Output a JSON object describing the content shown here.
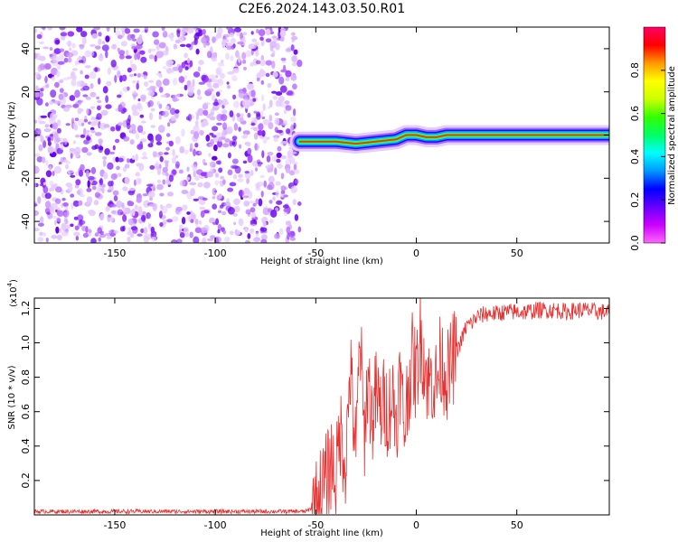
{
  "title": "C2E6.2024.143.03.50.R01",
  "chart_data": [
    {
      "type": "heatmap",
      "xlabel": "Height of straight line (km)",
      "ylabel": "Frequency (Hz)",
      "xlim": [
        -190,
        96
      ],
      "ylim": [
        -50,
        50
      ],
      "x_ticks": [
        -150,
        -100,
        -50,
        0,
        50
      ],
      "y_ticks": [
        -40,
        -20,
        0,
        20,
        40
      ],
      "colorbar": {
        "label": "Normalized spectral amplitude",
        "range": [
          0,
          1
        ],
        "ticks": [
          "0.0",
          "0.2",
          "0.4",
          "0.6",
          "0.8"
        ],
        "colors": [
          "#ff66ff",
          "#cc00ff",
          "#6600ff",
          "#0000ff",
          "#0099ff",
          "#00ffff",
          "#00ff66",
          "#33ff00",
          "#ccff00",
          "#ffff00",
          "#ff9900",
          "#ff0000",
          "#ff0066"
        ]
      },
      "noise_region": {
        "x_range": [
          -190,
          -58
        ],
        "freq_range": [
          -50,
          50
        ],
        "amplitude": "low (0.0-0.2)"
      },
      "signal_track": [
        {
          "x": -58,
          "freq": -3
        },
        {
          "x": -50,
          "freq": -3
        },
        {
          "x": -40,
          "freq": -3
        },
        {
          "x": -30,
          "freq": -4
        },
        {
          "x": -20,
          "freq": -3
        },
        {
          "x": -10,
          "freq": -2
        },
        {
          "x": -5,
          "freq": 0
        },
        {
          "x": 0,
          "freq": 0
        },
        {
          "x": 5,
          "freq": -1
        },
        {
          "x": 10,
          "freq": -1
        },
        {
          "x": 15,
          "freq": 0
        },
        {
          "x": 20,
          "freq": 0
        },
        {
          "x": 40,
          "freq": 0
        },
        {
          "x": 60,
          "freq": 0
        },
        {
          "x": 80,
          "freq": 0
        },
        {
          "x": 96,
          "freq": 0
        }
      ]
    },
    {
      "type": "line",
      "xlabel": "Height of straight line (km)",
      "ylabel": "SNR (10 * v/v)",
      "y_multiplier": "(x10",
      "y_multiplier_exp": "4",
      "y_multiplier_close": ")",
      "xlim": [
        -190,
        96
      ],
      "ylim": [
        0,
        1.26
      ],
      "x_ticks": [
        -150,
        -100,
        -50,
        0,
        50
      ],
      "y_ticks": [
        0.2,
        0.4,
        0.6,
        0.8,
        1.0,
        1.2
      ],
      "line_color": "#e83030",
      "series": [
        {
          "x": [
            -190,
            -150,
            -100,
            -55,
            -50,
            -48,
            -45,
            -42,
            -40,
            -38,
            -35,
            -33,
            -30,
            -28,
            -26,
            -24,
            -22,
            -20,
            -18,
            -16,
            -14,
            -12,
            -10,
            -8,
            -6,
            -4,
            -2,
            0,
            2,
            4,
            6,
            8,
            10,
            12,
            14,
            16,
            18,
            20,
            22,
            25,
            28,
            30,
            35,
            40,
            45,
            50,
            55,
            60,
            65,
            70,
            75,
            80,
            85,
            90,
            96
          ],
          "y": [
            0.02,
            0.02,
            0.02,
            0.02,
            0.05,
            0.12,
            0.2,
            0.32,
            0.2,
            0.5,
            0.3,
            0.85,
            0.35,
            1.05,
            0.45,
            0.8,
            0.55,
            0.7,
            0.6,
            0.65,
            0.6,
            0.7,
            0.55,
            0.8,
            0.5,
            0.75,
            0.9,
            0.8,
            1.05,
            0.9,
            0.75,
            0.8,
            0.75,
            0.9,
            0.85,
            0.8,
            0.9,
            0.95,
            1.0,
            1.1,
            1.12,
            1.15,
            1.17,
            1.17,
            1.18,
            1.18,
            1.18,
            1.19,
            1.19,
            1.19,
            1.18,
            1.19,
            1.19,
            1.18,
            1.18
          ]
        }
      ]
    }
  ]
}
